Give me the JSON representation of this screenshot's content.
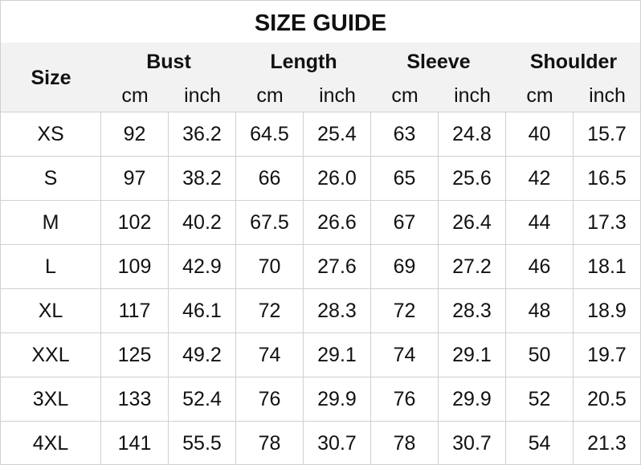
{
  "title": "SIZE GUIDE",
  "size_header": "Size",
  "groups": [
    "Bust",
    "Length",
    "Sleeve",
    "Shoulder"
  ],
  "units": [
    "cm",
    "inch"
  ],
  "rows": [
    [
      "XS",
      "92",
      "36.2",
      "64.5",
      "25.4",
      "63",
      "24.8",
      "40",
      "15.7"
    ],
    [
      "S",
      "97",
      "38.2",
      "66",
      "26.0",
      "65",
      "25.6",
      "42",
      "16.5"
    ],
    [
      "M",
      "102",
      "40.2",
      "67.5",
      "26.6",
      "67",
      "26.4",
      "44",
      "17.3"
    ],
    [
      "L",
      "109",
      "42.9",
      "70",
      "27.6",
      "69",
      "27.2",
      "46",
      "18.1"
    ],
    [
      "XL",
      "117",
      "46.1",
      "72",
      "28.3",
      "72",
      "28.3",
      "48",
      "18.9"
    ],
    [
      "XXL",
      "125",
      "49.2",
      "74",
      "29.1",
      "74",
      "29.1",
      "50",
      "19.7"
    ],
    [
      "3XL",
      "133",
      "52.4",
      "76",
      "29.9",
      "76",
      "29.9",
      "52",
      "20.5"
    ],
    [
      "4XL",
      "141",
      "55.5",
      "78",
      "30.7",
      "78",
      "30.7",
      "54",
      "21.3"
    ]
  ],
  "colors": {
    "header_bg": "#f2f2f2",
    "border": "#d0d0d0"
  }
}
